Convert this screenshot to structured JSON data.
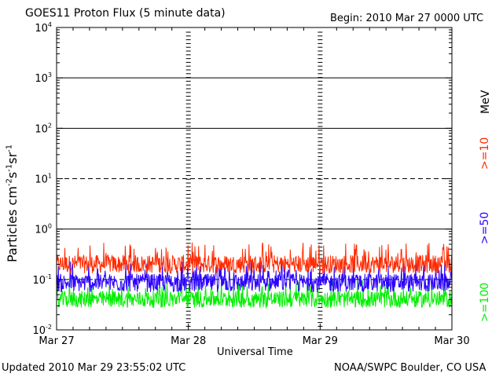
{
  "header": {
    "title": "GOES11 Proton Flux (5 minute data)",
    "begin": "Begin: 2010 Mar 27 0000 UTC"
  },
  "footer": {
    "updated": "Updated 2010 Mar 29 23:55:02 UTC",
    "credit": "NOAA/SWPC Boulder, CO USA"
  },
  "axes": {
    "xlabel": "Universal Time",
    "ylabel_main": "Particles cm",
    "ylabel_exp1": "-2",
    "ylabel_mid1": "s",
    "ylabel_exp2": "-1",
    "ylabel_mid2": "sr",
    "ylabel_exp3": "-1"
  },
  "legend": {
    "unit": "MeV",
    "items": [
      {
        "label": ">=10",
        "color": "#ff2a00"
      },
      {
        "label": ">=50",
        "color": "#2a00ff"
      },
      {
        "label": ">=100",
        "color": "#00ee00"
      }
    ]
  },
  "chart_data": {
    "type": "line",
    "title": "GOES11 Proton Flux (5 minute data)",
    "xlabel": "Universal Time",
    "ylabel": "Particles cm-2 s-1 sr-1",
    "y_scale": "log",
    "ylim": [
      0.01,
      10000
    ],
    "y_ticks": [
      {
        "value": 0.01,
        "base": "10",
        "exp": "-2"
      },
      {
        "value": 0.1,
        "base": "10",
        "exp": "-1"
      },
      {
        "value": 1,
        "base": "10",
        "exp": "0"
      },
      {
        "value": 10,
        "base": "10",
        "exp": "1"
      },
      {
        "value": 100,
        "base": "10",
        "exp": "2"
      },
      {
        "value": 1000,
        "base": "10",
        "exp": "3"
      },
      {
        "value": 10000,
        "base": "10",
        "exp": "4"
      }
    ],
    "x_ticks": [
      "Mar 27",
      "Mar 28",
      "Mar 29",
      "Mar 30"
    ],
    "xlim": [
      "2010-03-27",
      "2010-03-30"
    ],
    "grid": "horizontal decades (10^-1 and 10^1 dashed) + vertical day separators",
    "series": [
      {
        "name": ">=10 MeV",
        "color": "#ff2a00",
        "typical": 0.2,
        "low": 0.12,
        "high": 0.55
      },
      {
        "name": ">=50 MeV",
        "color": "#2a00ff",
        "typical": 0.09,
        "low": 0.05,
        "high": 0.23
      },
      {
        "name": ">=100 MeV",
        "color": "#00ee00",
        "typical": 0.04,
        "low": 0.025,
        "high": 0.1
      }
    ]
  }
}
